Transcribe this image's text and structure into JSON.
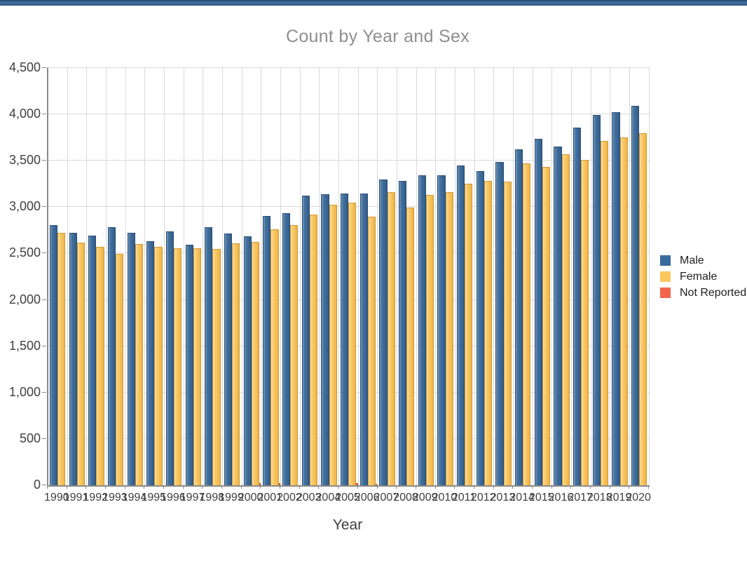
{
  "window": {
    "accent_bar_color": "#3e6b9a"
  },
  "chart": {
    "legend": [
      {
        "label": "Male",
        "color": "#3a6b9e"
      },
      {
        "label": "Female",
        "color": "#fbc75d"
      },
      {
        "label": "Not Reported",
        "color": "#f2654a"
      }
    ]
  },
  "chart_data": {
    "type": "bar",
    "title": "Count by Year and Sex",
    "xlabel": "Year",
    "ylabel": "",
    "ylim": [
      0,
      4500
    ],
    "ytick_step": 500,
    "y_tick_labels": [
      "0",
      "500",
      "1,000",
      "1,500",
      "2,000",
      "2,500",
      "3,000",
      "3,500",
      "4,000",
      "4,500"
    ],
    "grid": true,
    "legend_position": "right",
    "categories": [
      "1990",
      "1991",
      "1992",
      "1993",
      "1994",
      "1995",
      "1996",
      "1997",
      "1998",
      "1999",
      "2000",
      "2001",
      "2002",
      "2003",
      "2004",
      "2005",
      "2006",
      "2007",
      "2008",
      "2009",
      "2010",
      "2011",
      "2012",
      "2013",
      "2014",
      "2015",
      "2016",
      "2017",
      "2018",
      "2019",
      "2020"
    ],
    "series": [
      {
        "name": "Male",
        "color": "#3d6b9c",
        "values": [
          2805,
          2720,
          2690,
          2785,
          2725,
          2630,
          2740,
          2595,
          2780,
          2715,
          2685,
          2905,
          2935,
          3120,
          3140,
          3145,
          3145,
          3295,
          3285,
          3340,
          3340,
          3450,
          3390,
          3490,
          3620,
          3735,
          3655,
          3860,
          3995,
          4020,
          4090
        ]
      },
      {
        "name": "Female",
        "color": "#f9c75f",
        "values": [
          2725,
          2615,
          2570,
          2495,
          2605,
          2570,
          2555,
          2560,
          2550,
          2610,
          2625,
          2760,
          2805,
          2920,
          3025,
          3050,
          2895,
          3165,
          2995,
          3130,
          3160,
          3255,
          3280,
          3275,
          3475,
          3430,
          3570,
          3510,
          3710,
          3750,
          3795
        ]
      },
      {
        "name": "Not Reported",
        "color": "#f2654a",
        "values": [
          0,
          0,
          0,
          0,
          0,
          0,
          0,
          0,
          0,
          0,
          20,
          20,
          0,
          0,
          0,
          20,
          15,
          0,
          0,
          0,
          0,
          0,
          0,
          0,
          0,
          0,
          0,
          0,
          0,
          0,
          0
        ]
      }
    ]
  }
}
